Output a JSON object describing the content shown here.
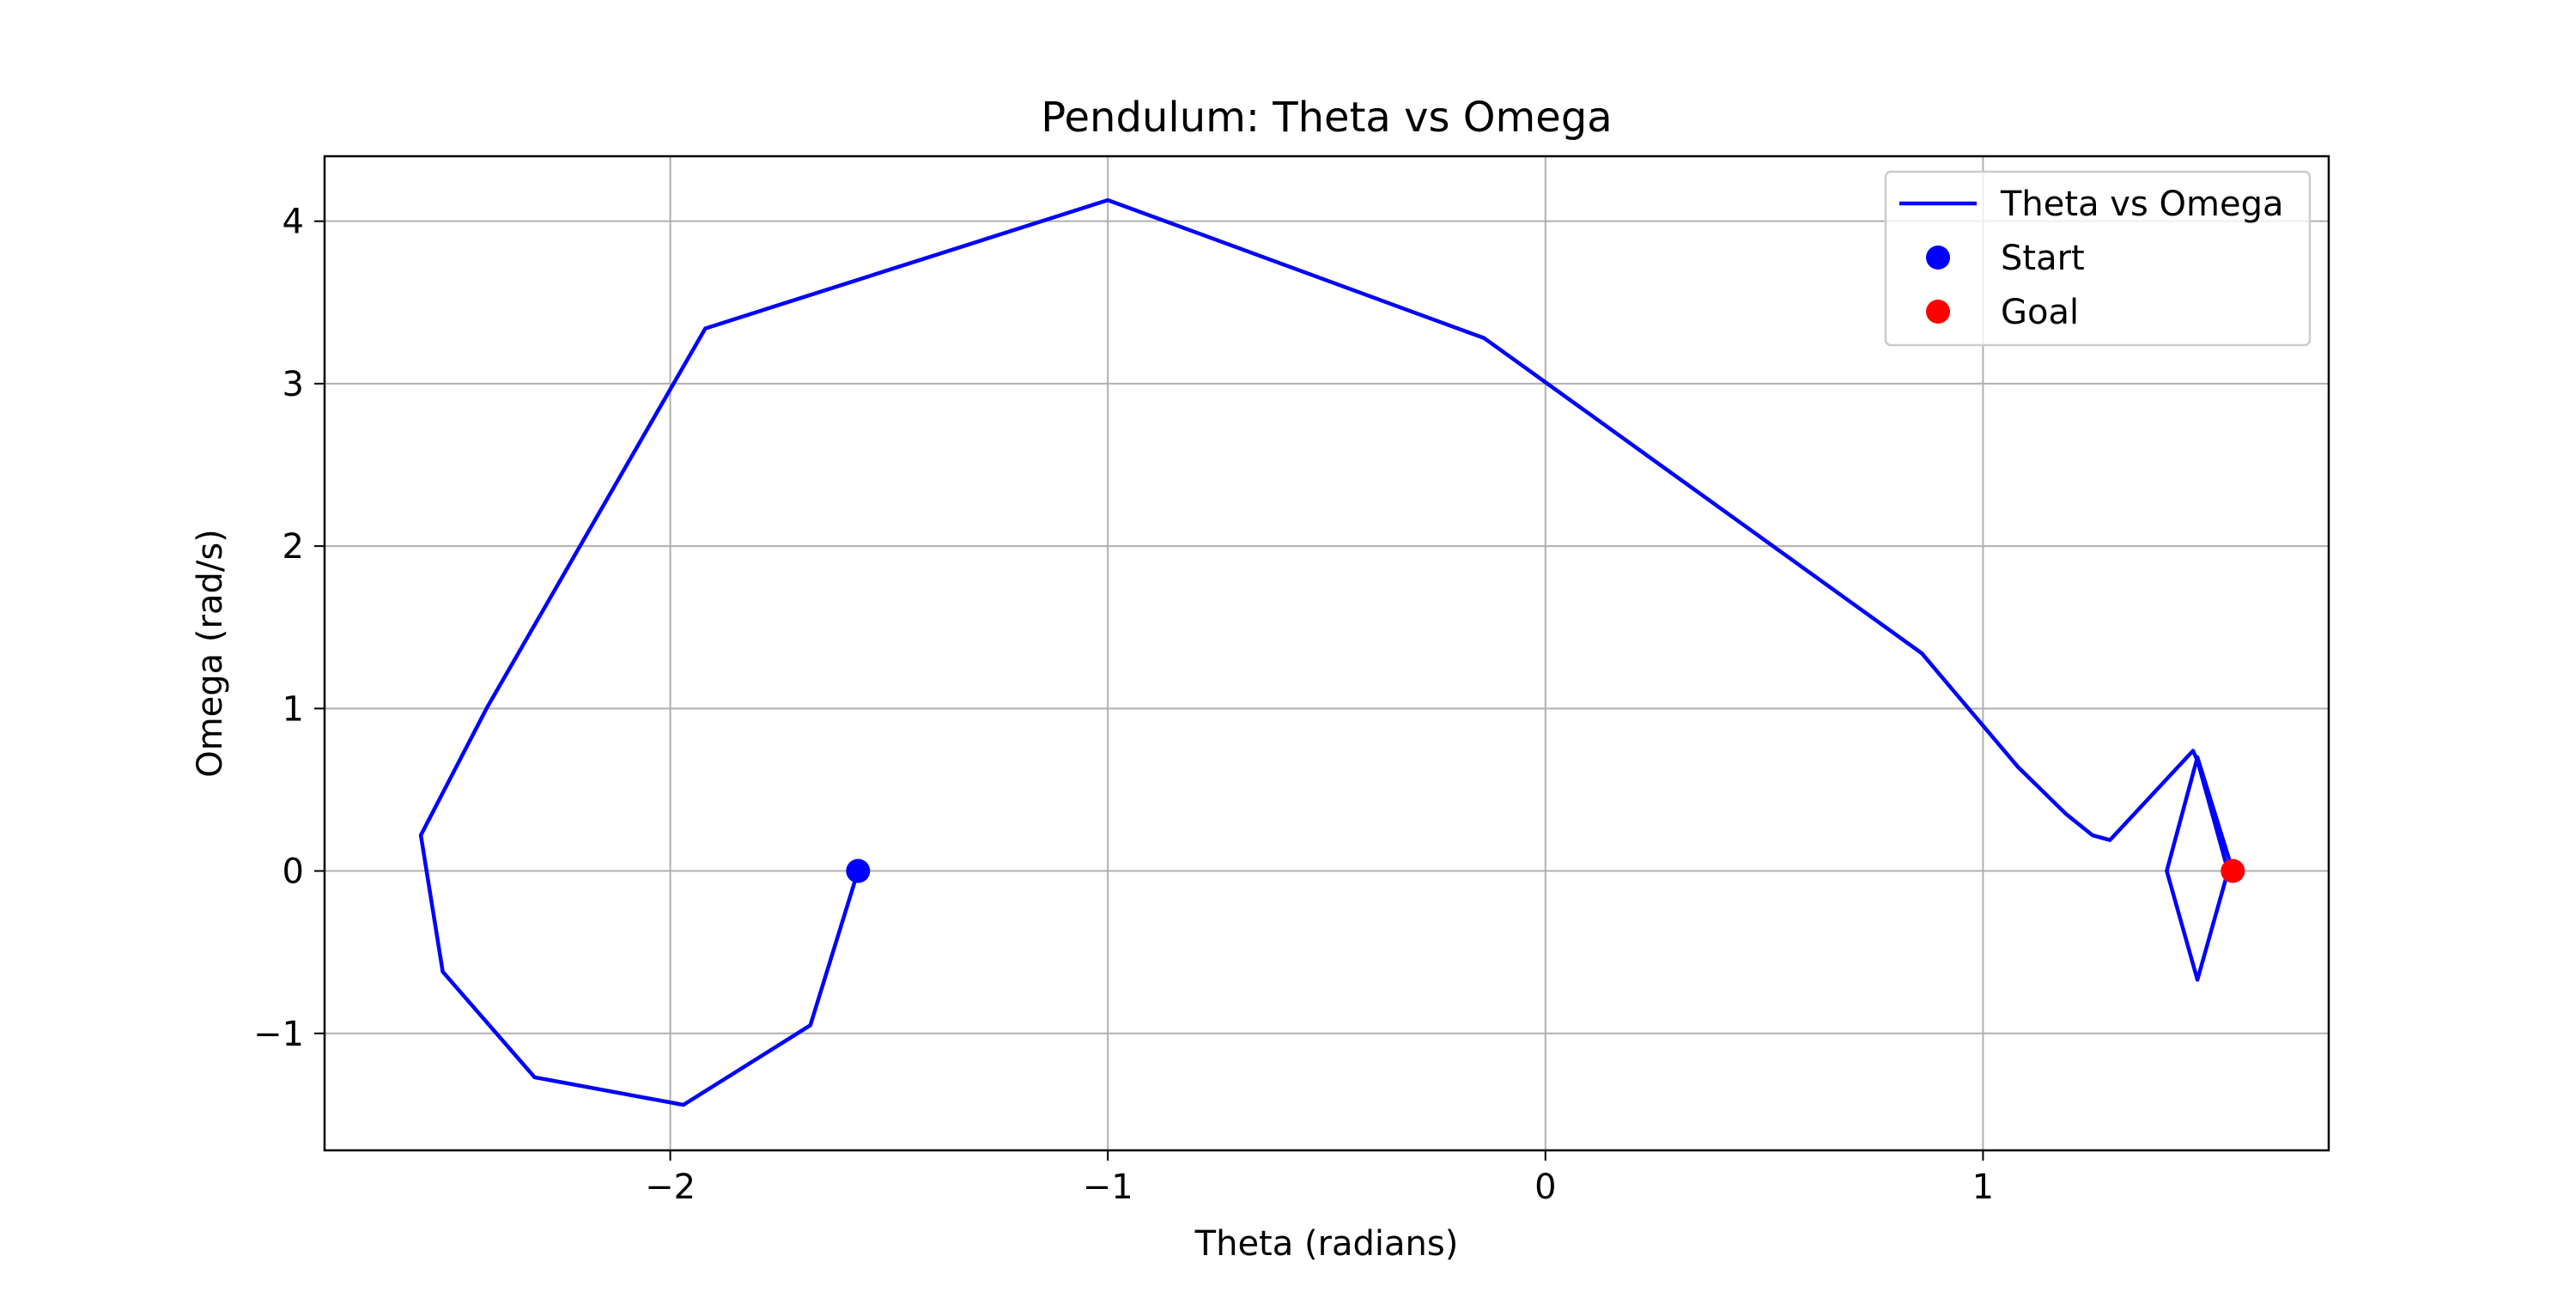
{
  "chart_data": {
    "type": "line",
    "title": "Pendulum: Theta vs Omega",
    "xlabel": "Theta (radians)",
    "ylabel": "Omega (rad/s)",
    "xlim": [
      -2.79,
      1.79
    ],
    "ylim": [
      -1.72,
      4.4
    ],
    "xticks": [
      -2,
      -1,
      0,
      1
    ],
    "yticks": [
      -1,
      0,
      1,
      2,
      3,
      4
    ],
    "xtick_labels": [
      "−2",
      "−1",
      "0",
      "1"
    ],
    "ytick_labels": [
      "−1",
      "0",
      "1",
      "2",
      "3",
      "4"
    ],
    "grid": true,
    "legend_position": "top-right",
    "series": [
      {
        "name": "Theta vs Omega",
        "color": "#0000ff",
        "x": [
          -1.5708,
          -1.68,
          -1.97,
          -2.31,
          -2.52,
          -2.57,
          -2.42,
          -1.92,
          -1.0,
          -0.14,
          0.86,
          1.08,
          1.19,
          1.25,
          1.29,
          1.48,
          1.49,
          1.56,
          1.49,
          1.42,
          1.49,
          1.5708
        ],
        "y": [
          0,
          -0.95,
          -1.44,
          -1.27,
          -0.62,
          0.22,
          1.0,
          3.34,
          4.13,
          3.28,
          1.34,
          0.64,
          0.35,
          0.22,
          0.19,
          0.74,
          0.68,
          0.0,
          -0.67,
          0.0,
          0.7,
          0.0
        ]
      }
    ],
    "markers": [
      {
        "name": "Start",
        "x": -1.5708,
        "y": 0,
        "color": "#0000ff"
      },
      {
        "name": "Goal",
        "x": 1.5708,
        "y": 0,
        "color": "#ff0000"
      }
    ]
  }
}
